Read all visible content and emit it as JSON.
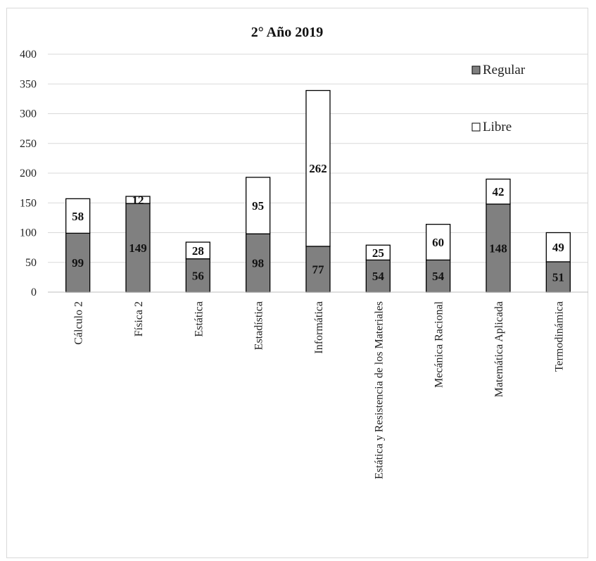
{
  "chart_data": {
    "type": "bar",
    "stacked": true,
    "title": "2° Año 2019",
    "xlabel": "",
    "ylabel": "",
    "ylim": [
      0,
      400
    ],
    "yticks": [
      0,
      50,
      100,
      150,
      200,
      250,
      300,
      350,
      400
    ],
    "grid": true,
    "legend_position": "top-right",
    "categories": [
      "Cálculo 2",
      "Física 2",
      "Estática",
      "Estadística",
      "Informática",
      "Estática y Resistencia de los Materiales",
      "Mecánica Racional",
      "Matemática Aplicada",
      "Termodinámica"
    ],
    "series": [
      {
        "name": "Regular",
        "color": "#808080",
        "values": [
          99,
          149,
          56,
          98,
          77,
          54,
          54,
          148,
          51
        ]
      },
      {
        "name": "Libre",
        "color": "#ffffff",
        "values": [
          58,
          12,
          28,
          95,
          262,
          25,
          60,
          42,
          49
        ]
      }
    ]
  }
}
